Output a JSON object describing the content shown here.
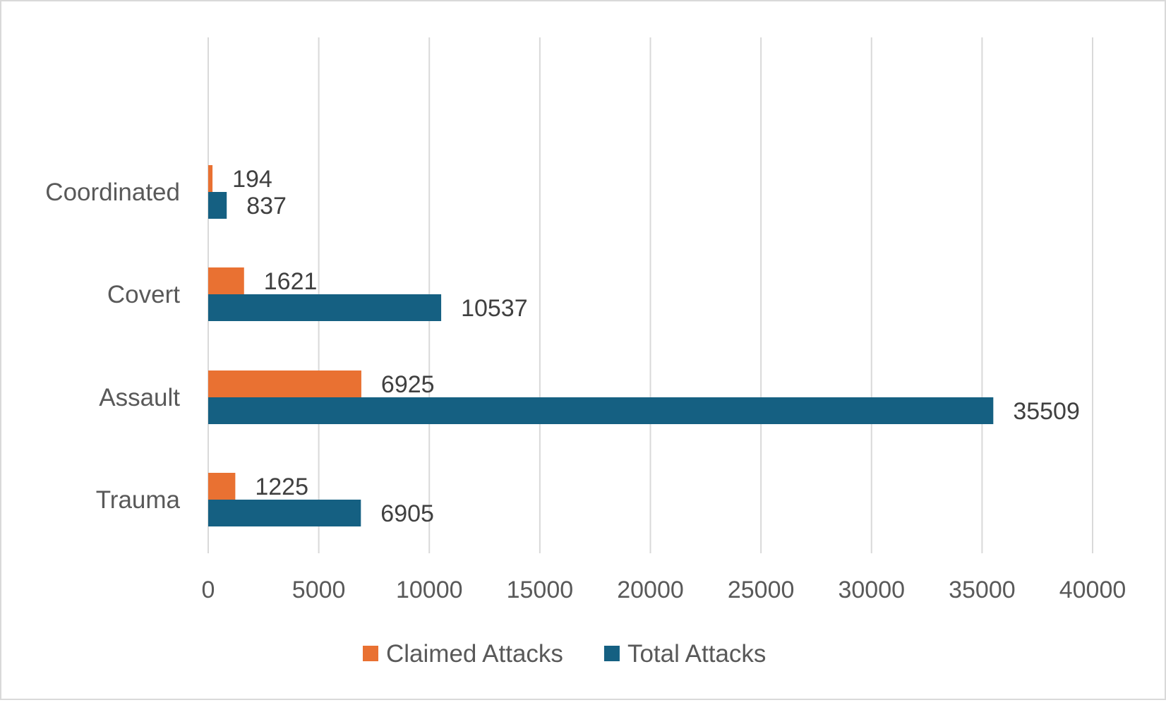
{
  "chart_data": {
    "type": "bar",
    "orientation": "horizontal",
    "title": "",
    "xlabel": "",
    "ylabel": "",
    "categories": [
      "Coordinated",
      "Covert",
      "Assault",
      "Trauma"
    ],
    "series": [
      {
        "name": "Claimed Attacks",
        "color": "#E97132",
        "values": [
          194,
          1621,
          6925,
          1225
        ]
      },
      {
        "name": "Total Attacks",
        "color": "#156082",
        "values": [
          837,
          10537,
          35509,
          6905
        ]
      }
    ],
    "xlim": [
      0,
      40000
    ],
    "xticks": [
      0,
      5000,
      10000,
      15000,
      20000,
      25000,
      30000,
      35000,
      40000
    ],
    "grid": true,
    "legend_position": "bottom",
    "data_labels": true
  }
}
